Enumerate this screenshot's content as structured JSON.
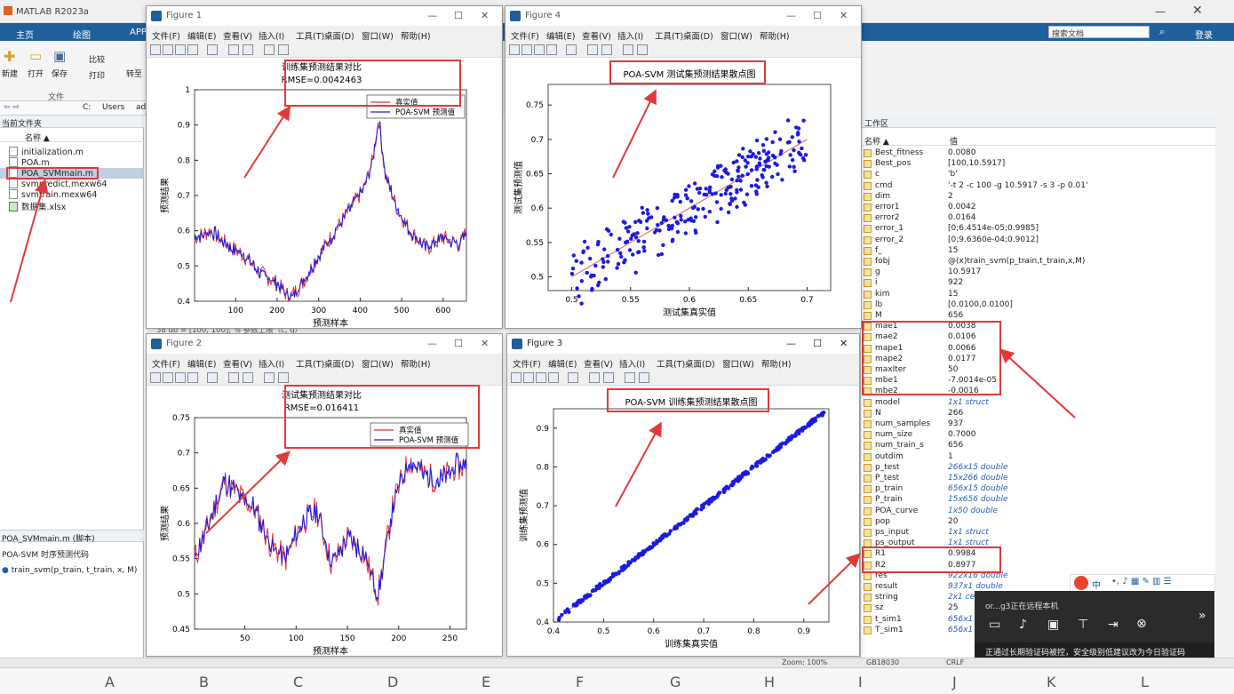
{
  "matlab": {
    "title": "MATLAB R2023a",
    "tabs": [
      "主页",
      "绘图",
      "APP"
    ],
    "ribbon": {
      "new": "新建",
      "open": "打开",
      "save": "保存",
      "compare": "比较",
      "print": "打印",
      "goto": "转至",
      "group": "文件"
    },
    "address": [
      "C:",
      "Users",
      "ad"
    ],
    "current_folder_label": "当前文件夹",
    "name_header": "名称 ▲",
    "files": [
      "initialization.m",
      "POA.m",
      "POA_SVMmain.m",
      "svmpredict.mexw64",
      "svmtrain.mexw64",
      "数据集.xlsx"
    ],
    "details_title": "POA_SVMmain.m (脚本)",
    "details_desc": "POA-SVM 时序预测代码",
    "details_func": "train_svm(p_train, t_train, x, M)",
    "search_placeholder": "搜索文档",
    "login": "登录",
    "workspace_label": "工作区",
    "ws_name_header": "名称 ▲",
    "ws_value_header": "值",
    "workspace": [
      {
        "name": "Best_fitness",
        "value": "0.0080"
      },
      {
        "name": "Best_pos",
        "value": "[100,10.5917]"
      },
      {
        "name": "c",
        "value": "'b'"
      },
      {
        "name": "cmd",
        "value": "'-t 2 -c 100 -g 10.5917 -s 3 -p 0.01'"
      },
      {
        "name": "dim",
        "value": "2"
      },
      {
        "name": "error1",
        "value": "0.0042"
      },
      {
        "name": "error2",
        "value": "0.0164"
      },
      {
        "name": "error_1",
        "value": "[0;6.4514e-05;0.9985]"
      },
      {
        "name": "error_2",
        "value": "[0;9.6360e-04;0.9012]"
      },
      {
        "name": "f_",
        "value": "15"
      },
      {
        "name": "fobj",
        "value": "@(x)train_svm(p_train,t_train,x,M)"
      },
      {
        "name": "g",
        "value": "10.5917"
      },
      {
        "name": "i",
        "value": "922"
      },
      {
        "name": "kim",
        "value": "15"
      },
      {
        "name": "lb",
        "value": "[0.0100,0.0100]"
      },
      {
        "name": "M",
        "value": "656"
      },
      {
        "name": "mae1",
        "value": "0.0038"
      },
      {
        "name": "mae2",
        "value": "0.0106"
      },
      {
        "name": "mape1",
        "value": "0.0066"
      },
      {
        "name": "mape2",
        "value": "0.0177"
      },
      {
        "name": "maxIter",
        "value": "50"
      },
      {
        "name": "mbe1",
        "value": "-7.0014e-05"
      },
      {
        "name": "mbe2",
        "value": "-0.0016"
      },
      {
        "name": "model",
        "value": "1x1 struct"
      },
      {
        "name": "N",
        "value": "266"
      },
      {
        "name": "num_samples",
        "value": "937"
      },
      {
        "name": "num_size",
        "value": "0.7000"
      },
      {
        "name": "num_train_s",
        "value": "656"
      },
      {
        "name": "outdim",
        "value": "1"
      },
      {
        "name": "p_test",
        "value": "266x15 double"
      },
      {
        "name": "P_test",
        "value": "15x266 double"
      },
      {
        "name": "p_train",
        "value": "656x15 double"
      },
      {
        "name": "P_train",
        "value": "15x656 double"
      },
      {
        "name": "POA_curve",
        "value": "1x50 double"
      },
      {
        "name": "pop",
        "value": "20"
      },
      {
        "name": "ps_input",
        "value": "1x1 struct"
      },
      {
        "name": "ps_output",
        "value": "1x1 struct"
      },
      {
        "name": "R1",
        "value": "0.9984"
      },
      {
        "name": "R2",
        "value": "0.8977"
      },
      {
        "name": "res",
        "value": "922x16 double"
      },
      {
        "name": "result",
        "value": "937x1 double"
      },
      {
        "name": "string",
        "value": "2x1 cell"
      },
      {
        "name": "sz",
        "value": "25"
      },
      {
        "name": "t_sim1",
        "value": "656x1 d"
      },
      {
        "name": "T_sim1",
        "value": "656x1 d"
      }
    ],
    "zoom": "Zoom: 100%",
    "encoding": "GB18030",
    "eol": "CRLF",
    "editor_line": "58    ub = [100, 100];   % 参数上限（c, g）"
  },
  "figure_menu": [
    "文件(F)",
    "编辑(E)",
    "查看(V)",
    "插入(I)",
    "工具(T)",
    "桌面(D)",
    "窗口(W)",
    "帮助(H)"
  ],
  "figures": {
    "f1": {
      "window": "Figure 1",
      "title": "训练集预测结果对比",
      "subtitle": "RMSE=0.0042463",
      "xlabel": "预测样本",
      "ylabel": "预测结果",
      "legend": [
        "真实值",
        "POA-SVM 预测值"
      ]
    },
    "f2": {
      "window": "Figure 2",
      "title": "测试集预测结果对比",
      "subtitle": "RMSE=0.016411",
      "xlabel": "预测样本",
      "ylabel": "预测结果",
      "legend": [
        "真实值",
        "POA-SVM 预测值"
      ]
    },
    "f3": {
      "window": "Figure 3",
      "title": "POA-SVM 训练集预测结果散点图",
      "xlabel": "训练集真实值",
      "ylabel": "训练集预测值"
    },
    "f4": {
      "window": "Figure 4",
      "title": "POA-SVM 测试集预测结果散点图",
      "xlabel": "测试集真实值",
      "ylabel": "测试集预测值"
    }
  },
  "notification": {
    "user": "or...g3正在远程本机",
    "banner": "正通过长期验证码被控，安全级别低建议改为今日验证码"
  },
  "ime": "中",
  "sheet_columns": [
    "A",
    "B",
    "C",
    "D",
    "E",
    "F",
    "G",
    "H",
    "I",
    "J",
    "K",
    "L"
  ],
  "chart_data": [
    {
      "type": "line",
      "title": "训练集预测结果对比",
      "subtitle": "RMSE=0.0042463",
      "xlabel": "预测样本",
      "ylabel": "预测结果",
      "xlim": [
        1,
        656
      ],
      "ylim": [
        0.4,
        1
      ],
      "xticks": [
        100,
        200,
        300,
        400,
        500,
        600
      ],
      "yticks": [
        0.4,
        0.5,
        0.6,
        0.7,
        0.8,
        0.9,
        1
      ],
      "series": [
        {
          "name": "真实值",
          "color": "#e03030"
        },
        {
          "name": "POA-SVM 预测值",
          "color": "#1a1ae0"
        }
      ],
      "x": [
        1,
        40,
        80,
        120,
        160,
        200,
        230,
        260,
        300,
        340,
        380,
        410,
        430,
        445,
        460,
        490,
        520,
        560,
        600,
        640,
        656
      ],
      "y": [
        0.58,
        0.6,
        0.56,
        0.53,
        0.48,
        0.45,
        0.41,
        0.45,
        0.53,
        0.6,
        0.67,
        0.72,
        0.8,
        0.92,
        0.76,
        0.66,
        0.6,
        0.55,
        0.58,
        0.56,
        0.6
      ]
    },
    {
      "type": "line",
      "title": "测试集预测结果对比",
      "subtitle": "RMSE=0.016411",
      "xlabel": "预测样本",
      "ylabel": "预测结果",
      "xlim": [
        1,
        266
      ],
      "ylim": [
        0.45,
        0.75
      ],
      "xticks": [
        50,
        100,
        150,
        200,
        250
      ],
      "yticks": [
        0.45,
        0.5,
        0.55,
        0.6,
        0.65,
        0.7,
        0.75
      ],
      "series": [
        {
          "name": "真实值",
          "color": "#e03030"
        },
        {
          "name": "POA-SVM 预测值",
          "color": "#1a1ae0"
        }
      ],
      "x": [
        1,
        15,
        30,
        45,
        60,
        75,
        90,
        105,
        120,
        135,
        150,
        165,
        180,
        195,
        210,
        225,
        240,
        255,
        266
      ],
      "y": [
        0.55,
        0.6,
        0.66,
        0.64,
        0.62,
        0.57,
        0.55,
        0.6,
        0.62,
        0.54,
        0.58,
        0.56,
        0.5,
        0.63,
        0.69,
        0.67,
        0.66,
        0.68,
        0.68
      ]
    },
    {
      "type": "scatter",
      "title": "POA-SVM 训练集预测结果散点图",
      "xlabel": "训练集真实值",
      "ylabel": "训练集预测值",
      "xlim": [
        0.4,
        0.95
      ],
      "ylim": [
        0.4,
        0.95
      ],
      "xticks": [
        0.4,
        0.5,
        0.6,
        0.7,
        0.8,
        0.9
      ],
      "yticks": [
        0.4,
        0.5,
        0.6,
        0.7,
        0.8,
        0.9
      ],
      "fit": [
        0.41,
        0.94
      ]
    },
    {
      "type": "scatter",
      "title": "POA-SVM 测试集预测结果散点图",
      "xlabel": "测试集真实值",
      "ylabel": "测试集预测值",
      "xlim": [
        0.48,
        0.72
      ],
      "ylim": [
        0.48,
        0.78
      ],
      "xticks": [
        0.5,
        0.55,
        0.6,
        0.65,
        0.7
      ],
      "yticks": [
        0.5,
        0.55,
        0.6,
        0.65,
        0.7,
        0.75
      ],
      "fit": [
        0.5,
        0.7
      ]
    }
  ]
}
